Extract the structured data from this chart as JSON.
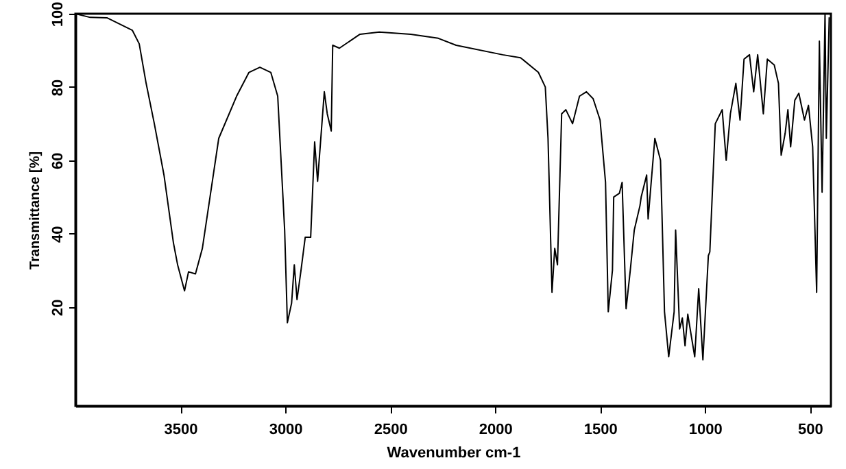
{
  "chart_data": {
    "type": "line",
    "xlabel": "Wavenumber cm-1",
    "ylabel": "Transmittance [%]",
    "xlim": [
      4000,
      400
    ],
    "ylim": [
      -7,
      100
    ],
    "xticks": [
      3500,
      3000,
      2500,
      2000,
      1500,
      1000,
      500
    ],
    "yticks": [
      20,
      40,
      60,
      80,
      100
    ],
    "grid": false,
    "marker": "none",
    "line_style": "solid",
    "series": [
      {
        "color": "#000000",
        "x": [
          4000,
          3930,
          3850,
          3729,
          3696,
          3663,
          3624,
          3578,
          3533,
          3513,
          3480,
          3461,
          3428,
          3395,
          3317,
          3232,
          3173,
          3121,
          3069,
          3036,
          3003,
          2990,
          2970,
          2957,
          2944,
          2925,
          2905,
          2879,
          2860,
          2846,
          2814,
          2800,
          2781,
          2774,
          2742,
          2644,
          2552,
          2402,
          2271,
          2186,
          1964,
          1879,
          1794,
          1761,
          1748,
          1729,
          1716,
          1703,
          1683,
          1663,
          1631,
          1598,
          1565,
          1533,
          1500,
          1474,
          1461,
          1441,
          1435,
          1408,
          1395,
          1376,
          1356,
          1337,
          1310,
          1304,
          1278,
          1271,
          1239,
          1212,
          1206,
          1193,
          1173,
          1147,
          1140,
          1121,
          1108,
          1095,
          1082,
          1075,
          1049,
          1030,
          1010,
          984,
          977,
          951,
          918,
          899,
          879,
          853,
          833,
          814,
          788,
          768,
          749,
          722,
          703,
          670,
          650,
          637,
          618,
          605,
          592,
          572,
          553,
          526,
          507,
          487,
          468,
          455,
          442,
          428,
          422,
          408
        ],
        "values": [
          100,
          99,
          98.9,
          95.5,
          91.8,
          81,
          70,
          56,
          37.5,
          31.5,
          24.4,
          29.6,
          29,
          36,
          66,
          77.5,
          84,
          85.4,
          84,
          77.5,
          41,
          15.7,
          21,
          31.5,
          22,
          30,
          39,
          39,
          65,
          54.3,
          78.7,
          72.7,
          68,
          91.4,
          90.6,
          94.4,
          95,
          94.4,
          93.3,
          91.4,
          88.8,
          88,
          84,
          80,
          66,
          24,
          36,
          31.5,
          72.7,
          73.8,
          70,
          77.5,
          78.7,
          76.8,
          71,
          54,
          18.7,
          30,
          50,
          51,
          54,
          19.5,
          30,
          41,
          47.6,
          50,
          56,
          44,
          66,
          60,
          47.6,
          18.7,
          6.4,
          18.7,
          41,
          14,
          17,
          9.4,
          18,
          15.5,
          6.4,
          25,
          5.6,
          34,
          35,
          70,
          73.8,
          60,
          72.7,
          81,
          71,
          87.6,
          88.8,
          78.7,
          88.8,
          72.7,
          87.6,
          86,
          81,
          61.4,
          67.4,
          73.8,
          63.7,
          76.4,
          78.3,
          71,
          75,
          63.7,
          24,
          92.5,
          51.3,
          100,
          66,
          99
        ]
      }
    ]
  }
}
